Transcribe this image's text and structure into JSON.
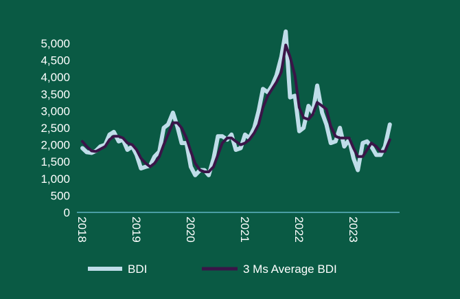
{
  "chart_data": {
    "type": "line",
    "title": "",
    "xlabel": "",
    "ylabel": "",
    "ylim": [
      0,
      5000
    ],
    "yticks": [
      "0",
      "500",
      "1,000",
      "1,500",
      "2,000",
      "2,500",
      "3,000",
      "3,500",
      "4,000",
      "4,500",
      "5,000"
    ],
    "ytick_values": [
      0,
      500,
      1000,
      1500,
      2000,
      2500,
      3000,
      3500,
      4000,
      4500,
      5000
    ],
    "xlim": [
      2018.0,
      2023.85
    ],
    "xticks": [
      "2018",
      "2019",
      "2020",
      "2021",
      "2022",
      "2023"
    ],
    "xtick_values": [
      2018,
      2019,
      2020,
      2021,
      2022,
      2023
    ],
    "legend": "bottom",
    "colors": {
      "background": "#0a5a44",
      "zero_line": "#5fb3c4"
    },
    "series": [
      {
        "name": "BDI",
        "color": "#bfdde9",
        "points": [
          [
            2018.0,
            1900
          ],
          [
            2018.08,
            1780
          ],
          [
            2018.17,
            1760
          ],
          [
            2018.25,
            1820
          ],
          [
            2018.33,
            1950
          ],
          [
            2018.42,
            2000
          ],
          [
            2018.5,
            2300
          ],
          [
            2018.58,
            2380
          ],
          [
            2018.67,
            2100
          ],
          [
            2018.75,
            2150
          ],
          [
            2018.83,
            1850
          ],
          [
            2018.92,
            1950
          ],
          [
            2019.0,
            1700
          ],
          [
            2019.08,
            1300
          ],
          [
            2019.17,
            1350
          ],
          [
            2019.25,
            1380
          ],
          [
            2019.33,
            1650
          ],
          [
            2019.42,
            1800
          ],
          [
            2019.5,
            2500
          ],
          [
            2019.58,
            2600
          ],
          [
            2019.67,
            2950
          ],
          [
            2019.75,
            2550
          ],
          [
            2019.83,
            2050
          ],
          [
            2019.92,
            2050
          ],
          [
            2020.0,
            1350
          ],
          [
            2020.08,
            1100
          ],
          [
            2020.17,
            1250
          ],
          [
            2020.25,
            1250
          ],
          [
            2020.33,
            1100
          ],
          [
            2020.42,
            1600
          ],
          [
            2020.5,
            2250
          ],
          [
            2020.58,
            2250
          ],
          [
            2020.67,
            2150
          ],
          [
            2020.75,
            2300
          ],
          [
            2020.83,
            1850
          ],
          [
            2020.92,
            1900
          ],
          [
            2021.0,
            2300
          ],
          [
            2021.08,
            2200
          ],
          [
            2021.17,
            2500
          ],
          [
            2021.25,
            3000
          ],
          [
            2021.33,
            3650
          ],
          [
            2021.42,
            3550
          ],
          [
            2021.5,
            3750
          ],
          [
            2021.58,
            4050
          ],
          [
            2021.67,
            4600
          ],
          [
            2021.75,
            5350
          ],
          [
            2021.83,
            3400
          ],
          [
            2021.92,
            3450
          ],
          [
            2022.0,
            2400
          ],
          [
            2022.08,
            2500
          ],
          [
            2022.17,
            3150
          ],
          [
            2022.25,
            2950
          ],
          [
            2022.33,
            3750
          ],
          [
            2022.42,
            2950
          ],
          [
            2022.5,
            2600
          ],
          [
            2022.58,
            2050
          ],
          [
            2022.67,
            2100
          ],
          [
            2022.75,
            2500
          ],
          [
            2022.83,
            1950
          ],
          [
            2022.92,
            2150
          ],
          [
            2023.0,
            1600
          ],
          [
            2023.08,
            1250
          ],
          [
            2023.17,
            2050
          ],
          [
            2023.25,
            2100
          ],
          [
            2023.33,
            1950
          ],
          [
            2023.42,
            1700
          ],
          [
            2023.5,
            1700
          ],
          [
            2023.58,
            1950
          ],
          [
            2023.67,
            2600
          ]
        ]
      },
      {
        "name": "3 Ms Average BDI",
        "color": "#3a1548",
        "points": [
          [
            2018.0,
            2100
          ],
          [
            2018.08,
            1950
          ],
          [
            2018.17,
            1820
          ],
          [
            2018.25,
            1800
          ],
          [
            2018.33,
            1870
          ],
          [
            2018.42,
            1950
          ],
          [
            2018.5,
            2150
          ],
          [
            2018.58,
            2250
          ],
          [
            2018.67,
            2250
          ],
          [
            2018.75,
            2200
          ],
          [
            2018.83,
            2050
          ],
          [
            2018.92,
            2000
          ],
          [
            2019.0,
            1850
          ],
          [
            2019.08,
            1600
          ],
          [
            2019.17,
            1450
          ],
          [
            2019.25,
            1350
          ],
          [
            2019.33,
            1450
          ],
          [
            2019.42,
            1650
          ],
          [
            2019.5,
            2000
          ],
          [
            2019.58,
            2300
          ],
          [
            2019.67,
            2650
          ],
          [
            2019.75,
            2650
          ],
          [
            2019.83,
            2500
          ],
          [
            2019.92,
            2200
          ],
          [
            2020.0,
            1800
          ],
          [
            2020.08,
            1450
          ],
          [
            2020.17,
            1250
          ],
          [
            2020.25,
            1200
          ],
          [
            2020.33,
            1200
          ],
          [
            2020.42,
            1350
          ],
          [
            2020.5,
            1700
          ],
          [
            2020.58,
            2050
          ],
          [
            2020.67,
            2200
          ],
          [
            2020.75,
            2200
          ],
          [
            2020.83,
            2100
          ],
          [
            2020.92,
            2000
          ],
          [
            2021.0,
            2050
          ],
          [
            2021.08,
            2150
          ],
          [
            2021.17,
            2350
          ],
          [
            2021.25,
            2600
          ],
          [
            2021.33,
            3100
          ],
          [
            2021.42,
            3450
          ],
          [
            2021.5,
            3650
          ],
          [
            2021.58,
            3850
          ],
          [
            2021.67,
            4150
          ],
          [
            2021.75,
            4950
          ],
          [
            2021.83,
            4600
          ],
          [
            2021.92,
            4050
          ],
          [
            2022.0,
            3100
          ],
          [
            2022.08,
            2800
          ],
          [
            2022.17,
            2750
          ],
          [
            2022.25,
            2900
          ],
          [
            2022.33,
            3250
          ],
          [
            2022.42,
            3150
          ],
          [
            2022.5,
            3050
          ],
          [
            2022.58,
            2550
          ],
          [
            2022.67,
            2250
          ],
          [
            2022.75,
            2200
          ],
          [
            2022.83,
            2200
          ],
          [
            2022.92,
            2200
          ],
          [
            2023.0,
            1900
          ],
          [
            2023.08,
            1650
          ],
          [
            2023.17,
            1650
          ],
          [
            2023.25,
            1850
          ],
          [
            2023.33,
            2050
          ],
          [
            2023.42,
            1950
          ],
          [
            2023.5,
            1800
          ],
          [
            2023.58,
            1800
          ],
          [
            2023.67,
            2150
          ]
        ]
      }
    ]
  }
}
